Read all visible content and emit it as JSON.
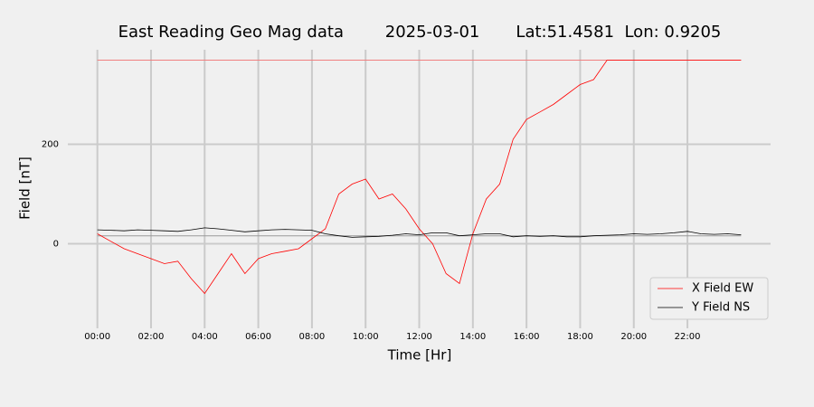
{
  "chart_data": {
    "type": "line",
    "title": "East Reading Geo Mag data        2025-03-01       Lat:51.4581  Lon: 0.9205",
    "xlabel": "Time  [Hr]",
    "ylabel": "Field  [nT]",
    "x": [
      0,
      0.5,
      1,
      1.5,
      2,
      2.5,
      3,
      3.5,
      4,
      4.5,
      5,
      5.5,
      6,
      6.5,
      7,
      7.5,
      8,
      8.5,
      9,
      9.5,
      10,
      10.5,
      11,
      11.5,
      12,
      12.5,
      13,
      13.5,
      14,
      14.5,
      15,
      15.5,
      16,
      16.5,
      17,
      17.5,
      18,
      18.5,
      19,
      19.5,
      20,
      20.5,
      21,
      21.5,
      22,
      22.5,
      23,
      23.5,
      24
    ],
    "series": [
      {
        "name": "X Field EW",
        "color": "#ff0000",
        "values": [
          20,
          5,
          -10,
          -20,
          -30,
          -40,
          -35,
          -70,
          -100,
          -60,
          -20,
          -60,
          -30,
          -20,
          -15,
          -10,
          10,
          30,
          100,
          120,
          130,
          90,
          100,
          70,
          30,
          0,
          -60,
          -80,
          20,
          90,
          120,
          210,
          250,
          265,
          280,
          300,
          320,
          330,
          369,
          369,
          369,
          369,
          369,
          369,
          369,
          369,
          369,
          369,
          369
        ]
      },
      {
        "name": "Y Field NS",
        "color": "#000000",
        "values": [
          28,
          27,
          26,
          28,
          27,
          26,
          25,
          28,
          32,
          30,
          27,
          24,
          26,
          28,
          29,
          28,
          27,
          20,
          16,
          13,
          14,
          15,
          17,
          20,
          18,
          22,
          22,
          16,
          18,
          20,
          20,
          14,
          16,
          15,
          16,
          14,
          14,
          16,
          17,
          18,
          20,
          19,
          20,
          22,
          25,
          20,
          19,
          20,
          18
        ]
      }
    ],
    "hlines": [
      {
        "value": 369,
        "color": "#f08080"
      },
      {
        "value": 16,
        "color": "#999999"
      }
    ],
    "xlim": [
      -1,
      25.1
    ],
    "ylim": [
      -170,
      390
    ],
    "xticks": [
      {
        "value": 0,
        "label": "00:00"
      },
      {
        "value": 2,
        "label": "02:00"
      },
      {
        "value": 4,
        "label": "04:00"
      },
      {
        "value": 6,
        "label": "06:00"
      },
      {
        "value": 8,
        "label": "08:00"
      },
      {
        "value": 10,
        "label": "10:00"
      },
      {
        "value": 12,
        "label": "12:00"
      },
      {
        "value": 14,
        "label": "14:00"
      },
      {
        "value": 16,
        "label": "16:00"
      },
      {
        "value": 18,
        "label": "18:00"
      },
      {
        "value": 20,
        "label": "20:00"
      },
      {
        "value": 22,
        "label": "22:00"
      }
    ],
    "yticks": [
      0,
      200
    ],
    "grid": true,
    "legend": "lower right"
  }
}
